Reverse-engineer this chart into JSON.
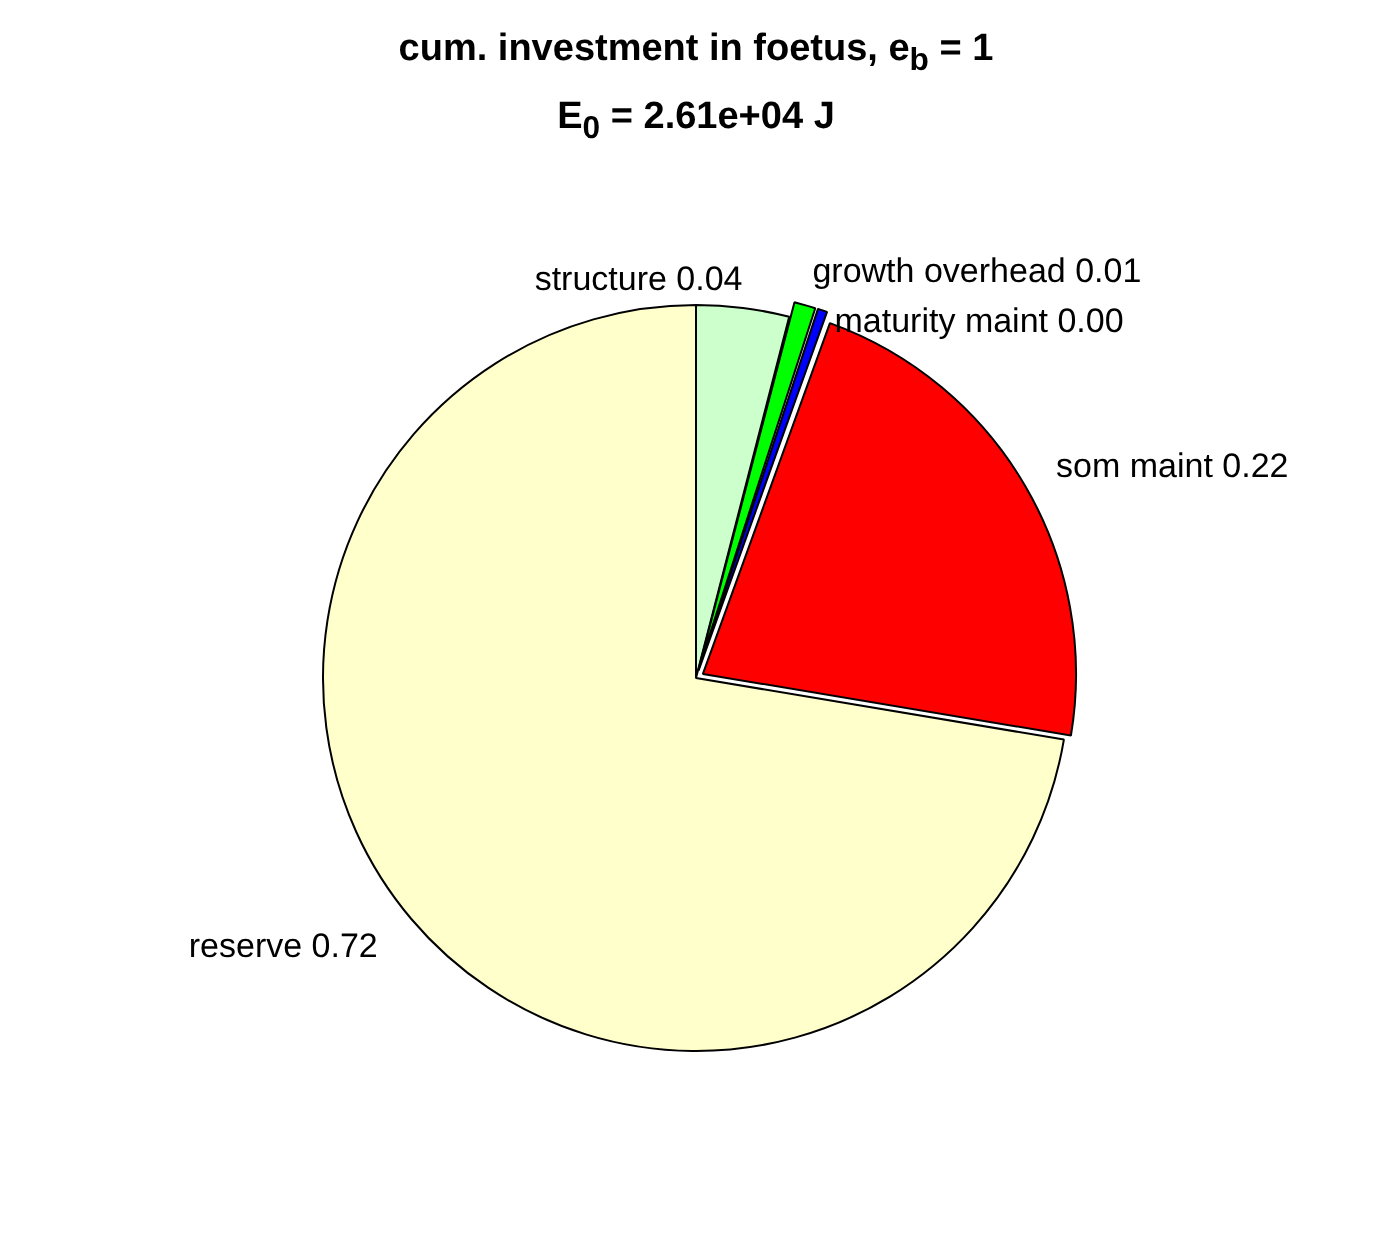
{
  "chart_data": {
    "type": "pie",
    "title": "cum. investment in foetus, e$_{b}$ = 1",
    "subtitle": "E$_{0}$ = 2.61e+04 J",
    "categories": [
      "structure",
      "growth overhead",
      "maturity maint",
      "som maint",
      "reserve"
    ],
    "values": [
      0.04,
      0.01,
      0.005,
      0.22,
      0.72
    ],
    "value_labels": [
      "0.04",
      "0.01",
      "0.00",
      "0.22",
      "0.72"
    ],
    "colors": [
      "#ccffcc",
      "#00ff00",
      "#0000ff",
      "#ff0000",
      "#ffffcc"
    ],
    "legend": false
  }
}
